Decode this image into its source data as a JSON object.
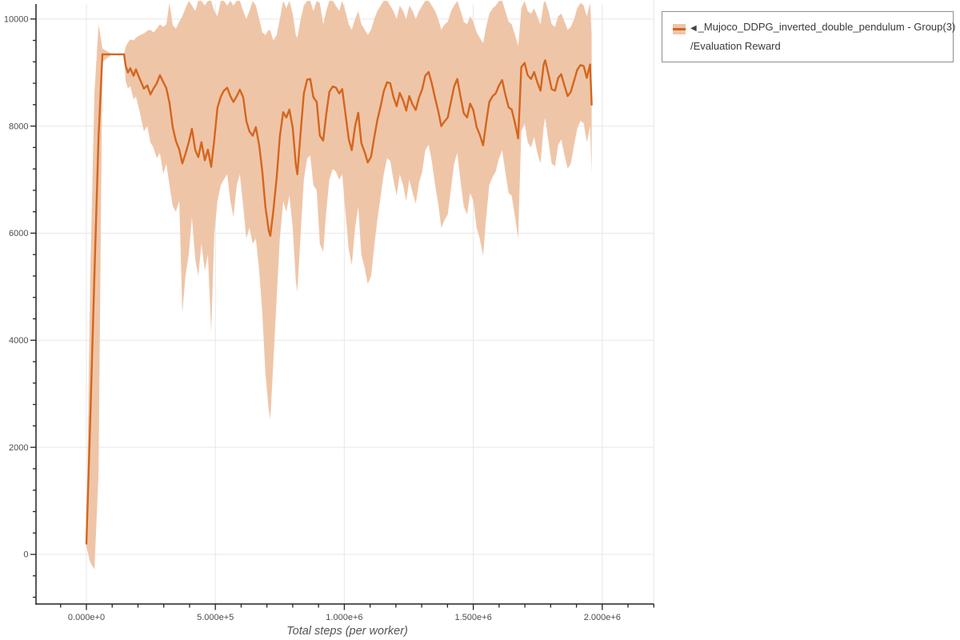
{
  "colors": {
    "line": "#d4661c",
    "band_fill": "#efc5a8",
    "grid": "#e7e7e7",
    "axis": "#222222",
    "tick_label": "#4d4d4d",
    "axis_title": "#555555",
    "legend_border": "#8f8f8f",
    "legend_text": "#3a3a3a"
  },
  "legend": {
    "collapse_icon": "◀",
    "series_label": "_Mujoco_DDPG_inverted_double_pendulum - Group(3)",
    "metric_label": "/Evaluation Reward"
  },
  "chart_data": {
    "type": "line",
    "title": "",
    "xlabel": "Total steps (per worker)",
    "ylabel": "",
    "grid": true,
    "legend_position": "top-right-outside",
    "x_axis": {
      "major_ticks": [
        0,
        500000,
        1000000,
        1500000,
        2000000
      ],
      "tick_labels": [
        "0.000e+0",
        "5.000e+5",
        "1.000e+6",
        "1.500e+6",
        "2.000e+6"
      ],
      "minor_tick_interval": 100000,
      "axis_range": [
        -195000,
        2200000
      ]
    },
    "y_axis": {
      "major_ticks": [
        0,
        2000,
        4000,
        6000,
        8000,
        10000
      ],
      "tick_labels": [
        "0",
        "2000",
        "4000",
        "6000",
        "8000",
        "10000"
      ],
      "minor_tick_interval": 400,
      "axis_range": [
        -926,
        10280
      ]
    },
    "series": [
      {
        "name": "_Mujoco_DDPG_inverted_double_pendulum - Group(3)/Evaluation Reward",
        "columns": [
          "step",
          "band_low",
          "mean",
          "band_high"
        ],
        "points": [
          [
            0,
            150,
            200,
            280
          ],
          [
            15000,
            -150,
            2500,
            5200
          ],
          [
            31000,
            -280,
            5200,
            8600
          ],
          [
            47000,
            1500,
            7800,
            9900
          ],
          [
            62000,
            9200,
            9340,
            9450
          ],
          [
            100000,
            9340,
            9340,
            9340
          ],
          [
            146000,
            9340,
            9340,
            9340
          ],
          [
            152000,
            8850,
            9130,
            9480
          ],
          [
            161000,
            8700,
            9000,
            9560
          ],
          [
            170000,
            8750,
            9080,
            9620
          ],
          [
            183000,
            8500,
            8940,
            9600
          ],
          [
            192000,
            8550,
            9060,
            9650
          ],
          [
            205000,
            8300,
            8900,
            9690
          ],
          [
            223000,
            7900,
            8700,
            9730
          ],
          [
            236000,
            8000,
            8760,
            9780
          ],
          [
            248000,
            7700,
            8590,
            9800
          ],
          [
            260000,
            7600,
            8700,
            9750
          ],
          [
            273000,
            7400,
            8800,
            9820
          ],
          [
            285000,
            7500,
            8950,
            9900
          ],
          [
            298000,
            7100,
            8820,
            9850
          ],
          [
            310000,
            7300,
            8710,
            9900
          ],
          [
            322000,
            6900,
            8440,
            10300
          ],
          [
            335000,
            6500,
            7970,
            9880
          ],
          [
            347000,
            6400,
            7720,
            9820
          ],
          [
            360000,
            6600,
            7560,
            9950
          ],
          [
            372000,
            4500,
            7300,
            10050
          ],
          [
            384000,
            5200,
            7480,
            10200
          ],
          [
            397000,
            5600,
            7700,
            10340
          ],
          [
            409000,
            6300,
            7950,
            10250
          ],
          [
            422000,
            5500,
            7550,
            10150
          ],
          [
            434000,
            5200,
            7420,
            10340
          ],
          [
            446000,
            5800,
            7700,
            10340
          ],
          [
            459000,
            5300,
            7360,
            10250
          ],
          [
            471000,
            5600,
            7560,
            10340
          ],
          [
            484000,
            4150,
            7240,
            10340
          ],
          [
            496000,
            6000,
            7750,
            10150
          ],
          [
            508000,
            6600,
            8340,
            10050
          ],
          [
            521000,
            6900,
            8550,
            10340
          ],
          [
            533000,
            7000,
            8660,
            10340
          ],
          [
            546000,
            7100,
            8715,
            10250
          ],
          [
            558000,
            6600,
            8560,
            10340
          ],
          [
            570000,
            6300,
            8450,
            10250
          ],
          [
            583000,
            6900,
            8560,
            10340
          ],
          [
            595000,
            7100,
            8680,
            10340
          ],
          [
            608000,
            6500,
            8540,
            10150
          ],
          [
            620000,
            5900,
            8100,
            10000
          ],
          [
            632000,
            6100,
            7900,
            10150
          ],
          [
            645000,
            5800,
            7820,
            10340
          ],
          [
            657000,
            5900,
            7980,
            10250
          ],
          [
            670000,
            5300,
            7640,
            10000
          ],
          [
            682000,
            4500,
            7150,
            9750
          ],
          [
            694000,
            3400,
            6500,
            9700
          ],
          [
            707000,
            2700,
            6050,
            9800
          ],
          [
            713000,
            2520,
            5950,
            9780
          ],
          [
            725000,
            3600,
            6420,
            9600
          ],
          [
            738000,
            4800,
            7050,
            9700
          ],
          [
            750000,
            5900,
            7810,
            10000
          ],
          [
            763000,
            6600,
            8260,
            10340
          ],
          [
            775000,
            6400,
            8160,
            10200
          ],
          [
            787000,
            6700,
            8310,
            10340
          ],
          [
            800000,
            6100,
            7970,
            10100
          ],
          [
            812000,
            5100,
            7280,
            9700
          ],
          [
            818000,
            4900,
            7100,
            9650
          ],
          [
            831000,
            6000,
            7900,
            10000
          ],
          [
            843000,
            7000,
            8610,
            10250
          ],
          [
            856000,
            7400,
            8870,
            10340
          ],
          [
            868000,
            7450,
            8880,
            10340
          ],
          [
            880000,
            6900,
            8540,
            10150
          ],
          [
            893000,
            6800,
            8450,
            10340
          ],
          [
            905000,
            5800,
            7820,
            10300
          ],
          [
            918000,
            5650,
            7730,
            9900
          ],
          [
            930000,
            6400,
            8220,
            10150
          ],
          [
            942000,
            7000,
            8640,
            10340
          ],
          [
            955000,
            7200,
            8740,
            10340
          ],
          [
            967000,
            7150,
            8720,
            10250
          ],
          [
            980000,
            7000,
            8610,
            10150
          ],
          [
            992000,
            7100,
            8690,
            10340
          ],
          [
            1004000,
            6400,
            8240,
            10150
          ],
          [
            1017000,
            5700,
            7760,
            9900
          ],
          [
            1029000,
            5400,
            7550,
            9800
          ],
          [
            1042000,
            6100,
            8000,
            10000
          ],
          [
            1054000,
            6500,
            8250,
            10150
          ],
          [
            1066000,
            5600,
            7680,
            9900
          ],
          [
            1079000,
            5350,
            7510,
            9800
          ],
          [
            1091000,
            5050,
            7320,
            9700
          ],
          [
            1104000,
            5200,
            7430,
            9800
          ],
          [
            1116000,
            5750,
            7790,
            10000
          ],
          [
            1128000,
            6250,
            8110,
            10150
          ],
          [
            1141000,
            6700,
            8380,
            10250
          ],
          [
            1153000,
            7100,
            8650,
            10340
          ],
          [
            1166000,
            7400,
            8820,
            10340
          ],
          [
            1178000,
            7350,
            8800,
            10250
          ],
          [
            1190000,
            7000,
            8550,
            10150
          ],
          [
            1203000,
            6700,
            8370,
            10000
          ],
          [
            1215000,
            7100,
            8620,
            10250
          ],
          [
            1228000,
            6900,
            8480,
            10150
          ],
          [
            1240000,
            6600,
            8290,
            10000
          ],
          [
            1252000,
            7000,
            8560,
            10250
          ],
          [
            1265000,
            6750,
            8400,
            10150
          ],
          [
            1277000,
            6550,
            8300,
            10000
          ],
          [
            1290000,
            6950,
            8540,
            10150
          ],
          [
            1302000,
            7150,
            8690,
            10250
          ],
          [
            1314000,
            7550,
            8940,
            10340
          ],
          [
            1327000,
            7650,
            9010,
            10340
          ],
          [
            1339000,
            7350,
            8800,
            10250
          ],
          [
            1352000,
            6900,
            8520,
            10150
          ],
          [
            1364000,
            6550,
            8280,
            10000
          ],
          [
            1376000,
            6100,
            8000,
            9800
          ],
          [
            1389000,
            6250,
            8090,
            9900
          ],
          [
            1401000,
            6350,
            8160,
            9950
          ],
          [
            1414000,
            6850,
            8470,
            10150
          ],
          [
            1426000,
            7300,
            8740,
            10250
          ],
          [
            1438000,
            7500,
            8880,
            10340
          ],
          [
            1451000,
            6950,
            8540,
            10150
          ],
          [
            1463000,
            6500,
            8240,
            9950
          ],
          [
            1476000,
            6350,
            8160,
            9900
          ],
          [
            1488000,
            6750,
            8420,
            10050
          ],
          [
            1500000,
            6600,
            8300,
            9950
          ],
          [
            1513000,
            6100,
            7980,
            9750
          ],
          [
            1525000,
            5900,
            7840,
            9650
          ],
          [
            1538000,
            5580,
            7640,
            9550
          ],
          [
            1550000,
            6300,
            8060,
            9850
          ],
          [
            1562000,
            6900,
            8450,
            10100
          ],
          [
            1575000,
            7050,
            8560,
            10200
          ],
          [
            1587000,
            7150,
            8610,
            10250
          ],
          [
            1600000,
            7400,
            8760,
            10340
          ],
          [
            1612000,
            7550,
            8860,
            10340
          ],
          [
            1624000,
            7150,
            8590,
            10150
          ],
          [
            1637000,
            6750,
            8350,
            9950
          ],
          [
            1649000,
            6700,
            8310,
            9900
          ],
          [
            1662000,
            6300,
            8050,
            9700
          ],
          [
            1674000,
            5900,
            7770,
            9500
          ],
          [
            1680000,
            6900,
            8400,
            9800
          ],
          [
            1686000,
            7900,
            9100,
            10200
          ],
          [
            1699000,
            8050,
            9180,
            10340
          ],
          [
            1711000,
            7700,
            8950,
            10150
          ],
          [
            1724000,
            7600,
            8880,
            10100
          ],
          [
            1736000,
            7800,
            9010,
            10200
          ],
          [
            1748000,
            7500,
            8820,
            10050
          ],
          [
            1761000,
            7300,
            8660,
            9900
          ],
          [
            1773000,
            8000,
            9150,
            10300
          ],
          [
            1779000,
            8150,
            9230,
            10340
          ],
          [
            1792000,
            7700,
            8960,
            10150
          ],
          [
            1804000,
            7300,
            8690,
            9900
          ],
          [
            1817000,
            7250,
            8660,
            9850
          ],
          [
            1829000,
            7650,
            8900,
            10050
          ],
          [
            1841000,
            7750,
            8970,
            10100
          ],
          [
            1854000,
            7450,
            8750,
            9950
          ],
          [
            1866000,
            7200,
            8560,
            9800
          ],
          [
            1878000,
            7300,
            8640,
            9850
          ],
          [
            1891000,
            7650,
            8850,
            10000
          ],
          [
            1903000,
            7950,
            9050,
            10200
          ],
          [
            1916000,
            8100,
            9140,
            10300
          ],
          [
            1928000,
            8050,
            9120,
            10250
          ],
          [
            1940000,
            7700,
            8900,
            10050
          ],
          [
            1953000,
            8000,
            9150,
            10300
          ],
          [
            1959000,
            7100,
            8400,
            9700
          ]
        ]
      }
    ]
  }
}
